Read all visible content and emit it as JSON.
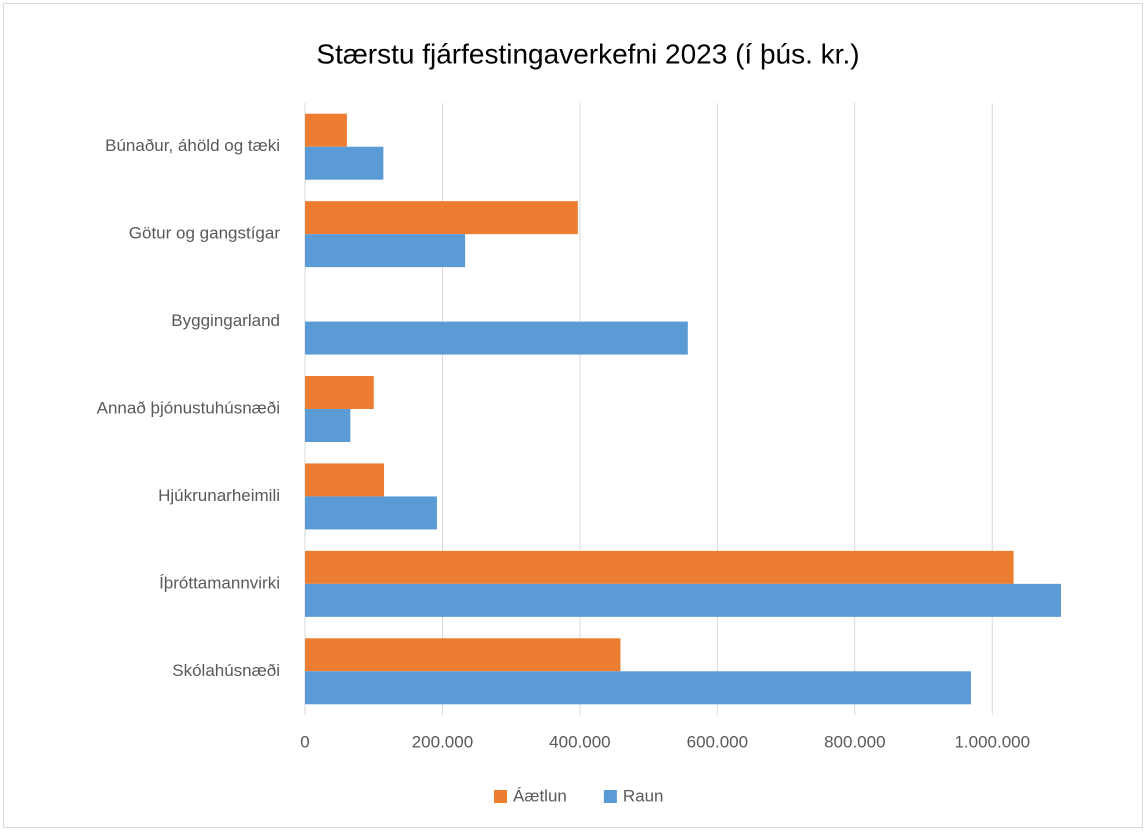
{
  "chart_data": {
    "type": "bar",
    "orientation": "horizontal",
    "title": "Stærstu fjárfestingaverkefni 2023 (í þús. kr.)",
    "categories": [
      "Búnaður, áhöld og tæki",
      "Götur og gangstígar",
      "Byggingarland",
      "Annað þjónustuhúsnæði",
      "Hjúkrunarheimili",
      "Íþróttamannvirki",
      "Skólahúsnæði"
    ],
    "series": [
      {
        "name": "Áætlun",
        "color": "#ed7d31",
        "values": [
          61000,
          397000,
          0,
          100000,
          115000,
          1031000,
          459000
        ]
      },
      {
        "name": "Raun",
        "color": "#5b9bd5",
        "values": [
          114000,
          233000,
          557000,
          66000,
          192000,
          1100000,
          969000
        ]
      }
    ],
    "xlim": [
      0,
      1100000
    ],
    "xticks": [
      0,
      {
        "value": 200000,
        "label": "200.000"
      },
      {
        "value": 400000,
        "label": "400.000"
      },
      {
        "value": 600000,
        "label": "600.000"
      },
      {
        "value": 800000,
        "label": "800.000"
      },
      {
        "value": 1000000,
        "label": "1.000.000"
      }
    ],
    "grid": true,
    "legend": "bottom"
  }
}
